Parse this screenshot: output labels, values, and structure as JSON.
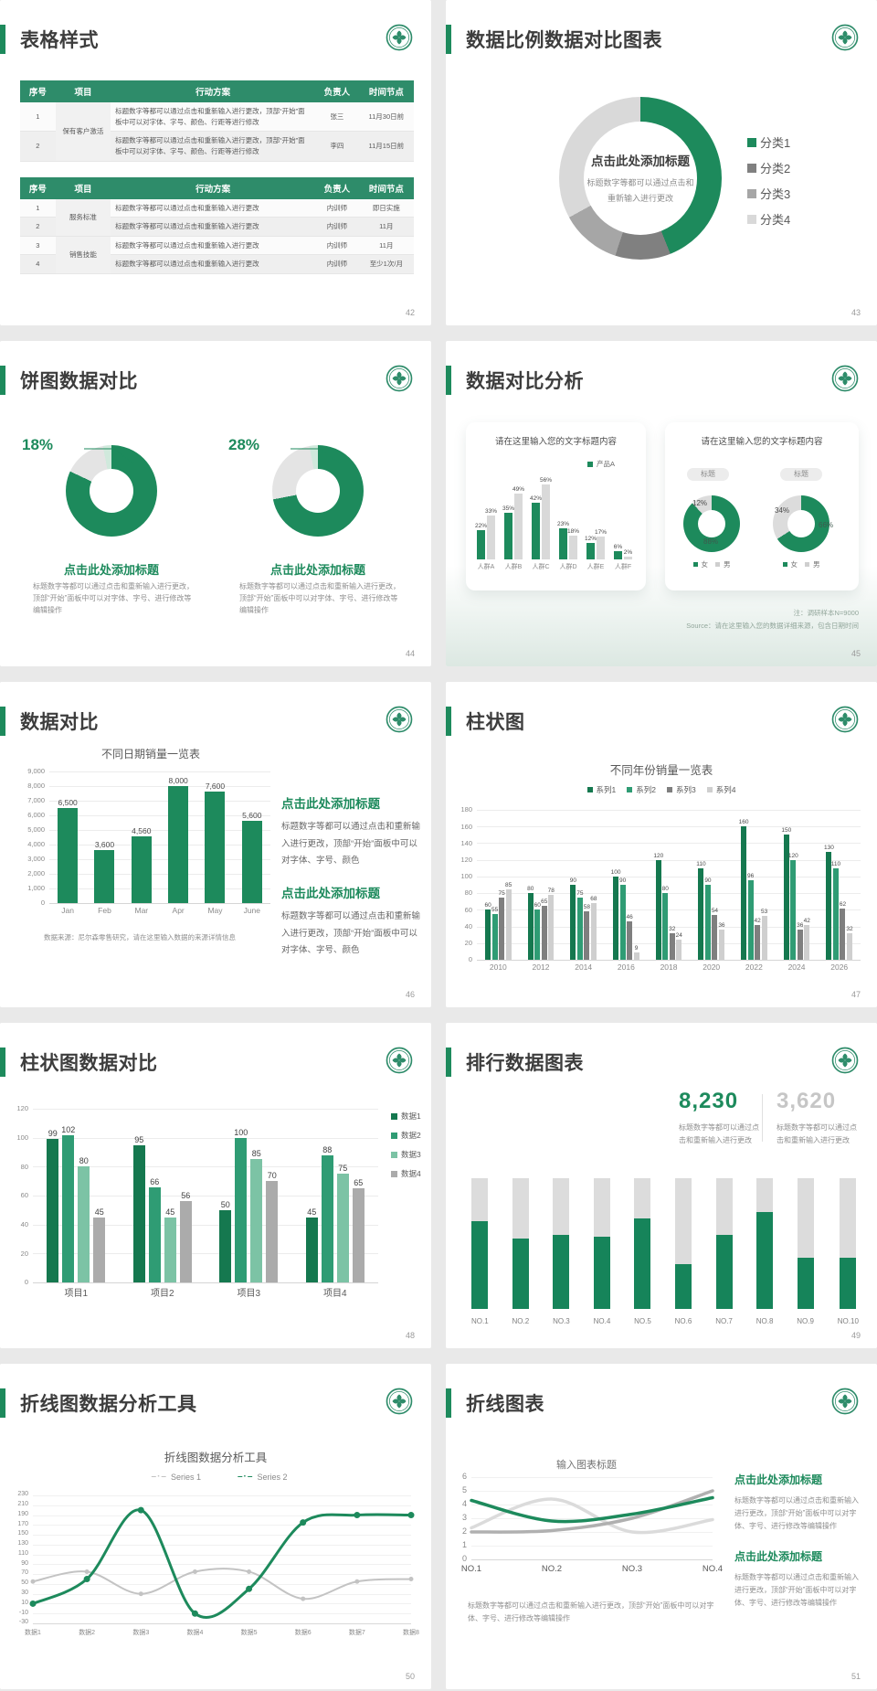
{
  "colors": {
    "primary_green": "#1D8A5C",
    "dark_green": "#15784F",
    "mid_green": "#2F9C74",
    "light_green": "#7CC3A5",
    "table_header_green": "#2E8C6A",
    "gray_dark": "#7F7F7F",
    "gray_mid": "#A9A9A9",
    "gray_light": "#D9D9D9"
  },
  "slides": {
    "s42": {
      "number": "42",
      "title": "表格样式",
      "tables": [
        {
          "headers": [
            "序号",
            "项目",
            "行动方案",
            "负责人",
            "时间节点"
          ],
          "rows": [
            [
              "1",
              "保有客户激活",
              "标题数字等都可以通过点击和重新输入进行更改，顶部“开始”面板中可以对字体、字号、颜色、行距等进行修改",
              "张三",
              "11月30日前"
            ],
            [
              "2",
              "",
              "标题数字等都可以通过点击和重新输入进行更改，顶部“开始”面板中可以对字体、字号、颜色、行距等进行修改",
              "李四",
              "11月15日前"
            ]
          ]
        },
        {
          "headers": [
            "序号",
            "项目",
            "行动方案",
            "负责人",
            "时间节点"
          ],
          "rows": [
            [
              "1",
              "服务标准",
              "标题数字等都可以通过点击和重新输入进行更改",
              "内训师",
              "即日实施"
            ],
            [
              "2",
              "",
              "标题数字等都可以通过点击和重新输入进行更改",
              "内训师",
              "11月"
            ],
            [
              "3",
              "销售技能",
              "标题数字等都可以通过点击和重新输入进行更改",
              "内训师",
              "11月"
            ],
            [
              "4",
              "",
              "标题数字等都可以通过点击和重新输入进行更改",
              "内训师",
              "至少1次/月"
            ]
          ]
        }
      ]
    },
    "s43": {
      "number": "43",
      "title": "数据比例数据对比图表"
    },
    "s44": {
      "number": "44",
      "title": "饼图数据对比"
    },
    "s45": {
      "number": "45",
      "title": "数据对比分析",
      "card1_title": "请在这里输入您的文字标题内容",
      "card2_title": "请在这里输入您的文字标题内容",
      "badge1": "标题",
      "badge2": "标题",
      "note1": "注：调研样本N=9000",
      "note2": "Source：请在这里输入您的数据详细来源，包含日期时间"
    },
    "s46": {
      "number": "46",
      "title": "数据对比",
      "blocks": [
        {
          "heading": "点击此处添加标题",
          "body": "标题数字等都可以通过点击和重新输入进行更改，顶部“开始”面板中可以对字体、字号、颜色"
        },
        {
          "heading": "点击此处添加标题",
          "body": "标题数字等都可以通过点击和重新输入进行更改，顶部“开始”面板中可以对字体、字号、颜色"
        }
      ],
      "source": "数据来源：尼尔森零售研究，请在这里输入数据的来源详情信息"
    },
    "s47": {
      "number": "47",
      "title": "柱状图"
    },
    "s48": {
      "number": "48",
      "title": "柱状图数据对比"
    },
    "s49": {
      "number": "49",
      "title": "排行数据图表",
      "stats": [
        {
          "value": "8,230",
          "text": "标题数字等都可以通过点击和重新输入进行更改"
        },
        {
          "value": "3,620",
          "text": "标题数字等都可以通过点击和重新输入进行更改"
        }
      ]
    },
    "s50": {
      "number": "50",
      "title": "折线图数据分析工具"
    },
    "s51": {
      "number": "51",
      "title": "折线图表",
      "blocks": [
        {
          "heading": "点击此处添加标题",
          "body": "标题数字等都可以通过点击和重新输入进行更改，顶部“开始”面板中可以对字体、字号、进行修改等编辑操作"
        },
        {
          "heading": "点击此处添加标题",
          "body": "标题数字等都可以通过点击和重新输入进行更改，顶部“开始”面板中可以对字体、字号、进行修改等编辑操作"
        }
      ],
      "caption": "标题数字等都可以通过点击和重新输入进行更改，顶部“开始”面板中可以对字体、字号、进行修改等编辑操作"
    }
  },
  "chart_data": [
    {
      "type": "pie",
      "donut": true,
      "legend_position": "right",
      "labels": [
        "分类1",
        "分类2",
        "分类3",
        "分类4"
      ],
      "values": [
        44,
        11,
        12,
        33
      ],
      "colors": [
        "#1D8A5C",
        "#808080",
        "#A6A6A6",
        "#D9D9D9"
      ],
      "center_title": "点击此处添加标题",
      "center_text": "标题数字等都可以通过点击和重新输入进行更改"
    },
    {
      "type": "pie",
      "donut": true,
      "callout": "18%",
      "values": [
        82,
        15,
        3
      ],
      "colors": [
        "#1D8A5C",
        "#E4E4E4",
        "#D0E9DC"
      ],
      "title": "点击此处添加标题",
      "caption": "标题数字等都可以通过点击和重新输入进行更改，顶部“开始”面板中可以对字体、字号、进行修改等编辑操作"
    },
    {
      "type": "pie",
      "donut": true,
      "callout": "28%",
      "values": [
        72,
        25,
        3
      ],
      "colors": [
        "#1D8A5C",
        "#E4E4E4",
        "#D0E9DC"
      ],
      "title": "点击此处添加标题",
      "caption": "标题数字等都可以通过点击和重新输入进行更改，顶部“开始”面板中可以对字体、字号、进行修改等编辑操作"
    },
    {
      "type": "bar",
      "title": "请在这里输入您的文字标题内容",
      "unit": "%",
      "ylim": [
        0,
        60
      ],
      "categories": [
        "人群A",
        "人群B",
        "人群C",
        "人群D",
        "人群E",
        "人群F"
      ],
      "legend": [
        "产品A"
      ],
      "series": [
        {
          "name": "产品A",
          "color": "#1D8A5C",
          "values": [
            22,
            35,
            42,
            23,
            12,
            6
          ]
        },
        {
          "name": "",
          "color": "#D9D9D9",
          "values": [
            33,
            49,
            56,
            18,
            17,
            2
          ]
        }
      ]
    },
    {
      "type": "pie",
      "donut": true,
      "badge": "标题",
      "values": [
        88,
        12
      ],
      "labels": [
        "88%",
        "12%"
      ],
      "colors": [
        "#1D8A5C",
        "#DCDCDC"
      ],
      "legend": [
        "女",
        "男"
      ]
    },
    {
      "type": "pie",
      "donut": true,
      "badge": "标题",
      "values": [
        66,
        34
      ],
      "labels": [
        "66%",
        "34%"
      ],
      "colors": [
        "#1D8A5C",
        "#DCDCDC"
      ],
      "legend": [
        "女",
        "男"
      ]
    },
    {
      "type": "bar",
      "title": "不同日期销量一览表",
      "ylim": [
        0,
        9000
      ],
      "categories": [
        "Jan",
        "Feb",
        "Mar",
        "Apr",
        "May",
        "June"
      ],
      "values": [
        6500,
        3600,
        4560,
        8000,
        7600,
        5600
      ],
      "value_labels": [
        "6,500",
        "3,600",
        "4,560",
        "8,000",
        "7,600",
        "5,600"
      ],
      "yticks": [
        "9,000",
        "8,000",
        "7,000",
        "6,000",
        "5,000",
        "4,000",
        "3,000",
        "2,000",
        "1,000",
        "0"
      ],
      "color": "#1D8A5C"
    },
    {
      "type": "bar",
      "title": "不同年份销量一览表",
      "ylim": [
        0,
        180
      ],
      "categories": [
        "2010",
        "2012",
        "2014",
        "2016",
        "2018",
        "2020",
        "2022",
        "2024",
        "2026"
      ],
      "yticks": [
        "180",
        "160",
        "140",
        "120",
        "100",
        "80",
        "60",
        "40",
        "20",
        "0"
      ],
      "series": [
        {
          "name": "系列1",
          "color": "#15784F",
          "values": [
            60,
            80,
            90,
            100,
            120,
            110,
            160,
            150,
            130
          ]
        },
        {
          "name": "系列2",
          "color": "#2F9C74",
          "values": [
            55,
            60,
            75,
            90,
            80,
            90,
            96,
            120,
            110
          ]
        },
        {
          "name": "系列3",
          "color": "#7F7F7F",
          "values": [
            75,
            65,
            58,
            46,
            32,
            54,
            42,
            36,
            62
          ]
        },
        {
          "name": "系列4",
          "color": "#CFCFCF",
          "values": [
            85,
            78,
            68,
            9,
            24,
            36,
            53,
            42,
            32
          ]
        }
      ]
    },
    {
      "type": "bar",
      "ylim": [
        0,
        120
      ],
      "legend_position": "right",
      "categories": [
        "项目1",
        "项目2",
        "项目3",
        "项目4"
      ],
      "yticks": [
        "120",
        "100",
        "80",
        "60",
        "40",
        "20",
        "0"
      ],
      "series": [
        {
          "name": "数据1",
          "color": "#15784F",
          "values": [
            99,
            95,
            50,
            45
          ]
        },
        {
          "name": "数据2",
          "color": "#2F9C74",
          "values": [
            102,
            66,
            100,
            88
          ]
        },
        {
          "name": "数据3",
          "color": "#7CC3A5",
          "values": [
            80,
            45,
            85,
            75
          ]
        },
        {
          "name": "数据4",
          "color": "#ABABAB",
          "values": [
            45,
            56,
            70,
            65
          ]
        }
      ]
    },
    {
      "type": "bar",
      "stacked": true,
      "ylim": [
        0,
        100
      ],
      "categories": [
        "NO.1",
        "NO.2",
        "NO.3",
        "NO.4",
        "NO.5",
        "NO.6",
        "NO.7",
        "NO.8",
        "NO.9",
        "NO.10"
      ],
      "series": [
        {
          "name": "",
          "color": "#16845A",
          "values": [
            67,
            54,
            57,
            55,
            69,
            34,
            57,
            74,
            39,
            39
          ]
        },
        {
          "name": "",
          "color": "#DCDCDC",
          "values": [
            33,
            46,
            43,
            45,
            31,
            66,
            43,
            26,
            61,
            61
          ]
        }
      ]
    },
    {
      "type": "line",
      "title": "折线图数据分析工具",
      "ylim": [
        -30,
        230
      ],
      "markers": true,
      "categories": [
        "数据1",
        "数据2",
        "数据3",
        "数据4",
        "数据5",
        "数据6",
        "数据7",
        "数据8"
      ],
      "yticks": [
        "230",
        "210",
        "190",
        "170",
        "150",
        "130",
        "110",
        "90",
        "70",
        "50",
        "30",
        "10",
        "-10",
        "-30"
      ],
      "series": [
        {
          "name": "Series 1",
          "color": "#C3C3C3",
          "values": [
            55,
            75,
            30,
            75,
            75,
            20,
            55,
            60
          ]
        },
        {
          "name": "Series 2",
          "color": "#1D8A5C",
          "values": [
            10,
            60,
            200,
            -10,
            40,
            175,
            190,
            190
          ]
        }
      ]
    },
    {
      "type": "line",
      "title": "输入图表标题",
      "ylim": [
        0,
        6
      ],
      "categories": [
        "NO.1",
        "NO.2",
        "NO.3",
        "NO.4"
      ],
      "yticks": [
        "6",
        "5",
        "4",
        "3",
        "2",
        "1",
        "0"
      ],
      "series": [
        {
          "name": "",
          "color": "#DBDBDB",
          "values": [
            2.3,
            4.4,
            2,
            2.9
          ]
        },
        {
          "name": "",
          "color": "#B0B0B0",
          "values": [
            2,
            2.1,
            3,
            5
          ]
        },
        {
          "name": "",
          "color": "#1D8A5C",
          "values": [
            4.3,
            2.8,
            3.3,
            4.5
          ]
        }
      ]
    }
  ]
}
